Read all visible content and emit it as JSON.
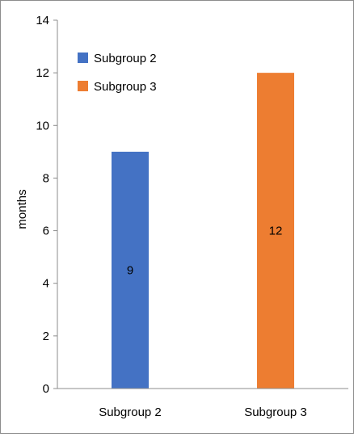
{
  "chart_data": {
    "type": "bar",
    "title": "",
    "xlabel": "",
    "ylabel": "months",
    "ylim": [
      0,
      14
    ],
    "ytick_step": 2,
    "yticks": [
      "0",
      "2",
      "4",
      "6",
      "8",
      "10",
      "12",
      "14"
    ],
    "categories": [
      "Subgroup 2",
      "Subgroup 3"
    ],
    "values": [
      9,
      12
    ],
    "data_labels": [
      "9",
      "12"
    ],
    "colors": [
      "#4472C4",
      "#ED7D31"
    ],
    "grid": false,
    "legend": {
      "placement": "top-left",
      "entries": [
        {
          "label": "Subgroup 2",
          "color": "#4472C4"
        },
        {
          "label": "Subgroup 3",
          "color": "#ED7D31"
        }
      ]
    }
  }
}
